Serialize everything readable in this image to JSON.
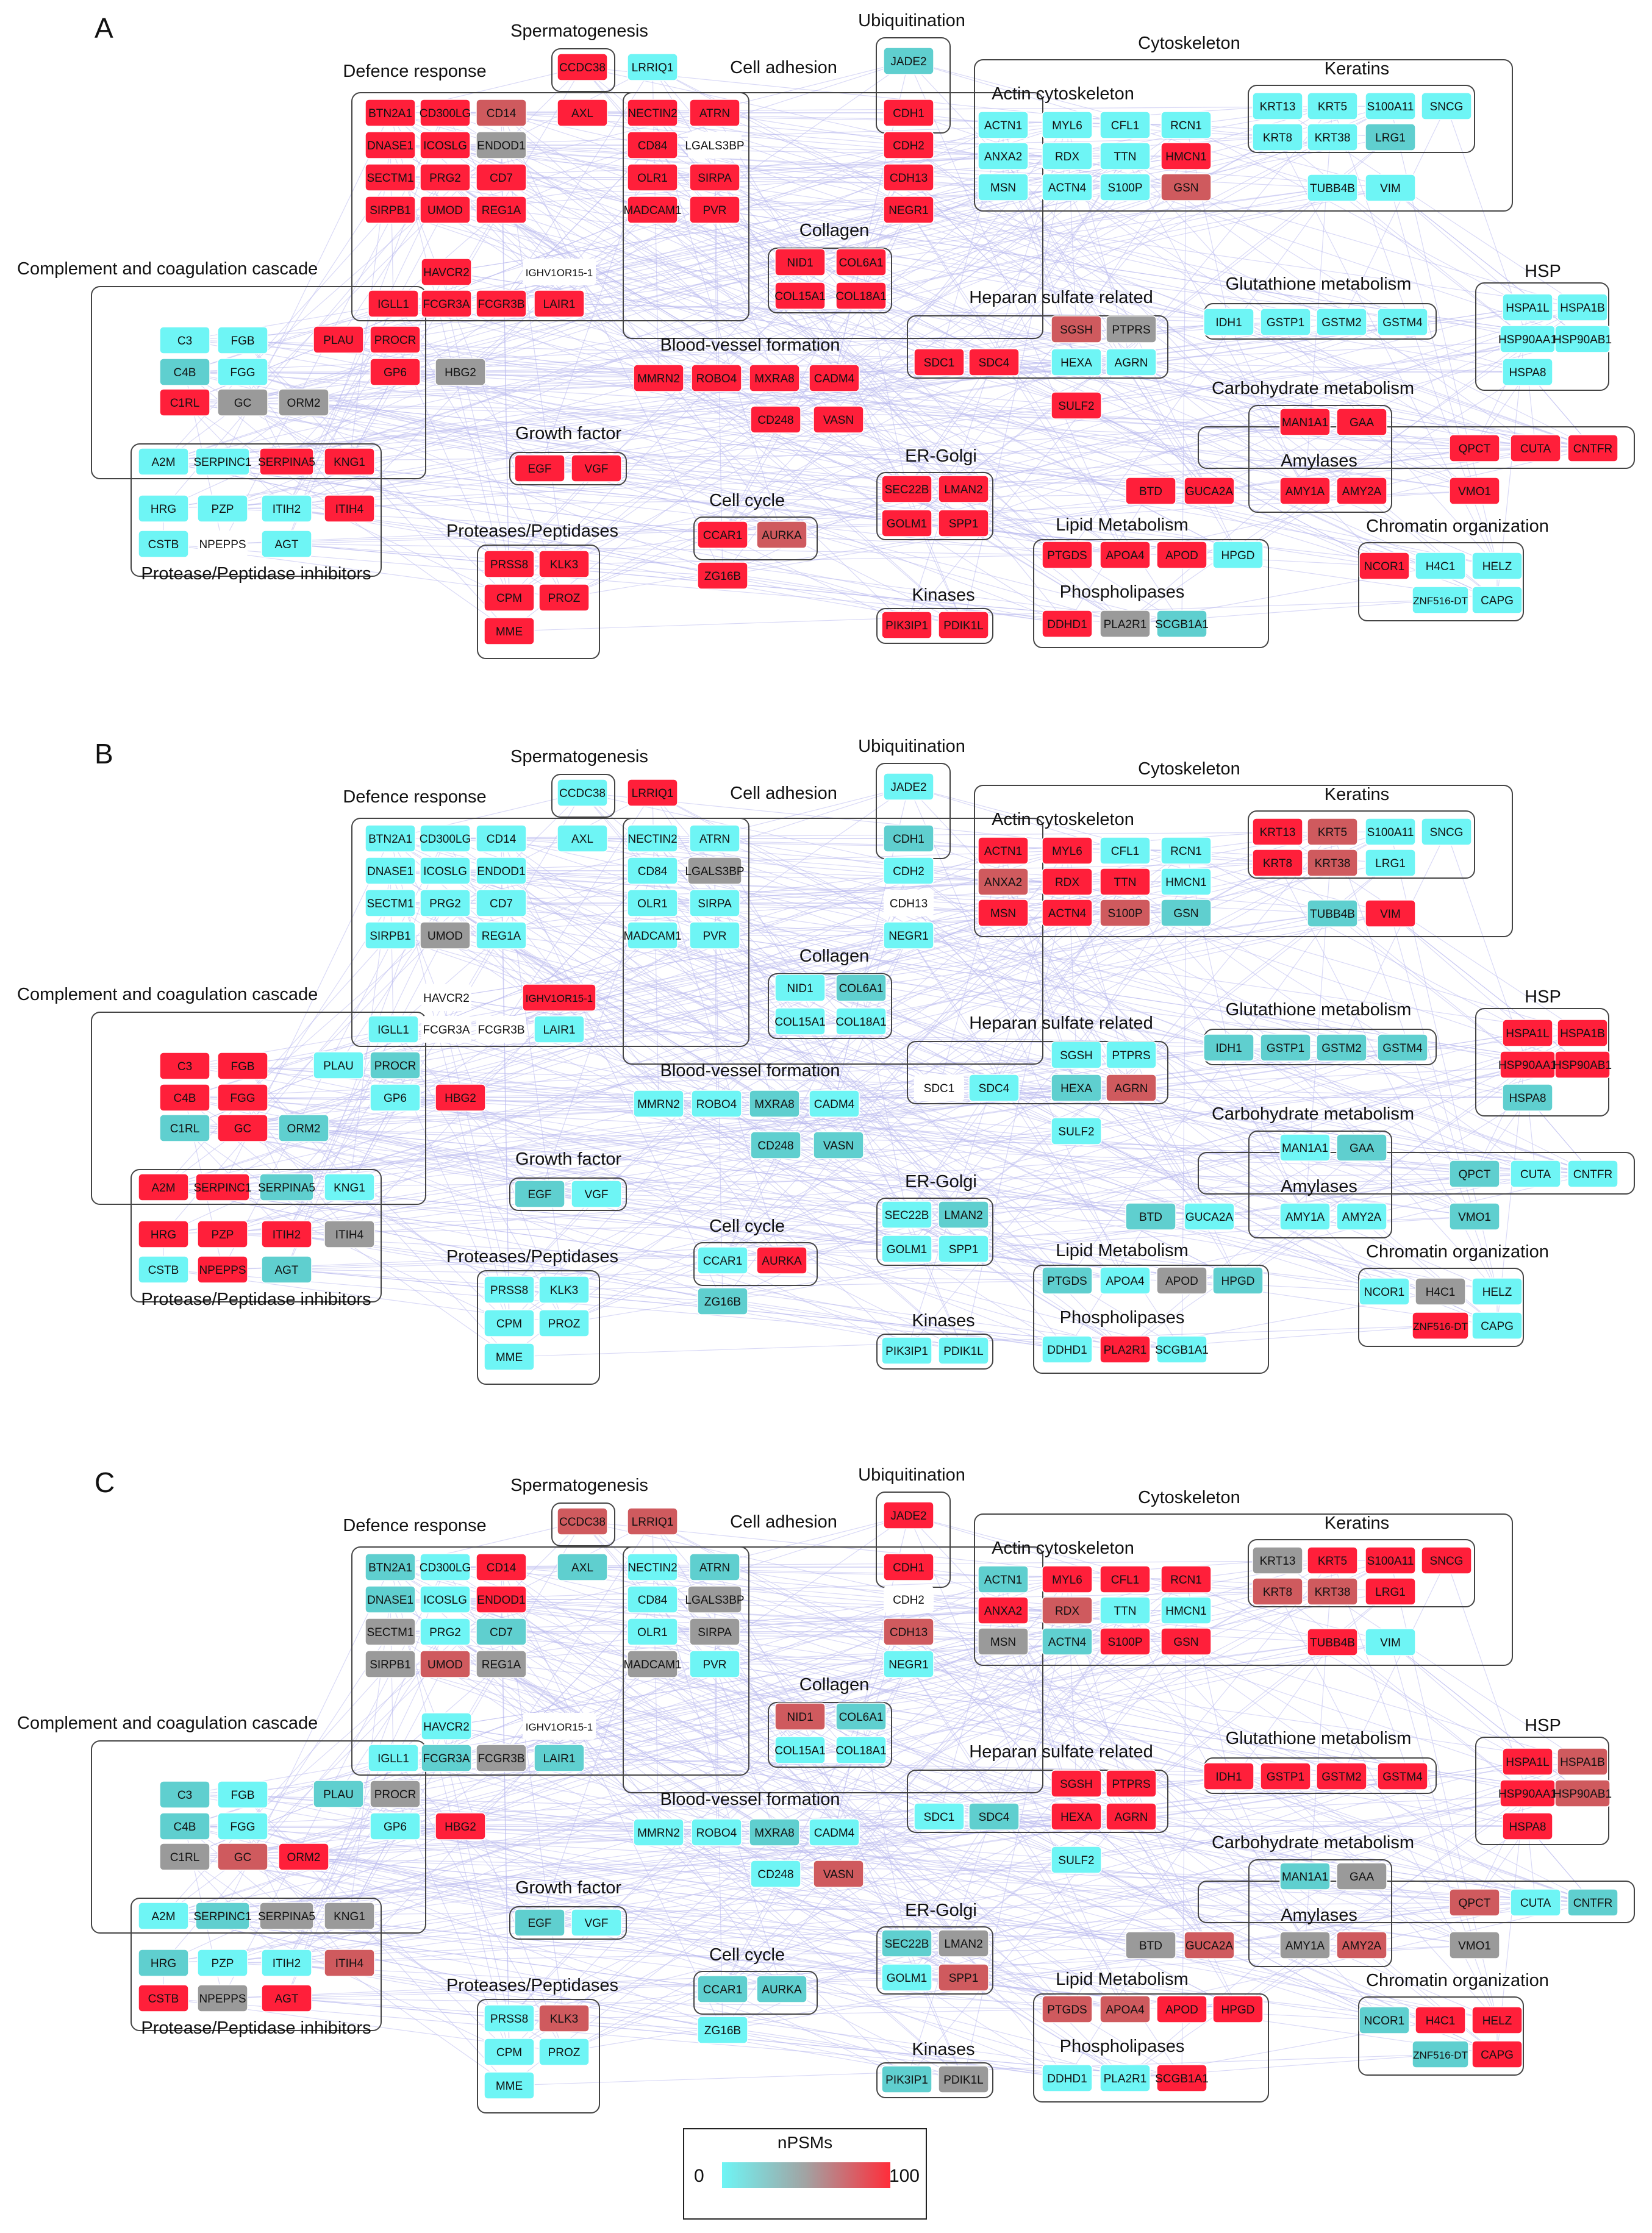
{
  "panels": [
    {
      "label": "A",
      "states": {
        "BTN2A1": "H",
        "CD300LG": "H",
        "CD14": "S",
        "DNASE1": "H",
        "ICOSLG": "H",
        "ENDOD1": "G",
        "SECTM1": "H",
        "PRG2": "H",
        "CD7": "H",
        "SIRPB1": "H",
        "UMOD": "H",
        "REG1A": "H",
        "HAVCR2": "H",
        "IGHV1OR15-1": "W",
        "IGLL1": "H",
        "FCGR3A": "H",
        "FCGR3B": "H",
        "LAIR1": "H",
        "CCDC38": "H",
        "LRRIQ1": "C",
        "AXL": "H",
        "JADE2": "T",
        "NECTIN2": "H",
        "ATRN": "H",
        "CD84": "H",
        "LGALS3BP": "W",
        "OLR1": "H",
        "SIRPA": "H",
        "MADCAM1": "H",
        "PVR": "H",
        "CDH1": "H",
        "CDH2": "H",
        "CDH13": "H",
        "NEGR1": "H",
        "NID1": "H",
        "COL6A1": "H",
        "COL15A1": "H",
        "COL18A1": "H",
        "MMRN2": "H",
        "ROBO4": "H",
        "MXRA8": "H",
        "CADM4": "H",
        "CD248": "H",
        "VASN": "H",
        "SGSH": "S",
        "PTPRS": "G",
        "HEXA": "C",
        "AGRN": "C",
        "SDC1": "H",
        "SDC4": "H",
        "SULF2": "H",
        "ACTN1": "C",
        "MYL6": "C",
        "CFL1": "C",
        "RCN1": "C",
        "ANXA2": "C",
        "RDX": "C",
        "TTN": "C",
        "HMCN1": "H",
        "MSN": "C",
        "ACTN4": "C",
        "S100P": "C",
        "GSN": "S",
        "KRT13": "C",
        "KRT5": "C",
        "S100A11": "C",
        "SNCG": "C",
        "KRT8": "C",
        "KRT38": "C",
        "LRG1": "T",
        "TUBB4B": "C",
        "VIM": "C",
        "IDH1": "C",
        "GSTP1": "C",
        "GSTM2": "C",
        "GSTM4": "C",
        "HSPA1L": "C",
        "HSPA1B": "C",
        "HSP90AA1": "C",
        "HSP90AB1": "C",
        "HSPA8": "C",
        "MAN1A1": "H",
        "GAA": "H",
        "AMY1A": "H",
        "AMY2A": "H",
        "BTD": "H",
        "GUCA2A": "H",
        "QPCT": "H",
        "CUTA": "H",
        "CNTFR": "H",
        "VMO1": "H",
        "C3": "C",
        "FGB": "C",
        "C4B": "T",
        "FGG": "C",
        "C1RL": "H",
        "GC": "G",
        "ORM2": "G",
        "PLAU": "H",
        "PROCR": "H",
        "GP6": "H",
        "HBG2": "G",
        "A2M": "C",
        "SERPINC1": "C",
        "SERPINA5": "H",
        "KNG1": "H",
        "HRG": "C",
        "PZP": "C",
        "ITIH2": "C",
        "ITIH4": "H",
        "CSTB": "C",
        "NPEPPS": "W",
        "AGT": "C",
        "EGF": "H",
        "VGF": "H",
        "PRSS8": "H",
        "KLK3": "H",
        "CPM": "H",
        "PROZ": "H",
        "MME": "H",
        "SEC22B": "H",
        "LMAN2": "H",
        "GOLM1": "H",
        "SPP1": "H",
        "CCAR1": "H",
        "AURKA": "S",
        "ZG16B": "H",
        "PIK3IP1": "H",
        "PDIK1L": "H",
        "PTGDS": "H",
        "APOA4": "H",
        "APOD": "H",
        "HPGD": "C",
        "DDHD1": "H",
        "PLA2R1": "G",
        "SCGB1A1": "T",
        "NCOR1": "H",
        "H4C1": "C",
        "HELZ": "C",
        "ZNF516-DT": "C",
        "CAPG": "C"
      }
    },
    {
      "label": "B",
      "states": {
        "BTN2A1": "C",
        "CD300LG": "C",
        "CD14": "C",
        "DNASE1": "C",
        "ICOSLG": "C",
        "ENDOD1": "C",
        "SECTM1": "C",
        "PRG2": "C",
        "CD7": "C",
        "SIRPB1": "C",
        "UMOD": "G",
        "REG1A": "C",
        "HAVCR2": "W",
        "IGHV1OR15-1": "H",
        "IGLL1": "C",
        "FCGR3A": "W",
        "FCGR3B": "W",
        "LAIR1": "C",
        "CCDC38": "C",
        "LRRIQ1": "H",
        "AXL": "C",
        "JADE2": "C",
        "NECTIN2": "C",
        "ATRN": "C",
        "CD84": "C",
        "LGALS3BP": "G",
        "OLR1": "C",
        "SIRPA": "C",
        "MADCAM1": "C",
        "PVR": "C",
        "CDH1": "T",
        "CDH2": "C",
        "CDH13": "W",
        "NEGR1": "C",
        "NID1": "C",
        "COL6A1": "T",
        "COL15A1": "C",
        "COL18A1": "C",
        "MMRN2": "C",
        "ROBO4": "C",
        "MXRA8": "T",
        "CADM4": "C",
        "CD248": "T",
        "VASN": "T",
        "SGSH": "C",
        "PTPRS": "C",
        "HEXA": "T",
        "AGRN": "S",
        "SDC1": "W",
        "SDC4": "C",
        "SULF2": "C",
        "ACTN1": "H",
        "MYL6": "H",
        "CFL1": "C",
        "RCN1": "C",
        "ANXA2": "S",
        "RDX": "H",
        "TTN": "H",
        "HMCN1": "C",
        "MSN": "H",
        "ACTN4": "H",
        "S100P": "S",
        "GSN": "T",
        "KRT13": "H",
        "KRT5": "S",
        "S100A11": "C",
        "SNCG": "C",
        "KRT8": "H",
        "KRT38": "S",
        "LRG1": "C",
        "TUBB4B": "T",
        "VIM": "H",
        "IDH1": "T",
        "GSTP1": "T",
        "GSTM2": "T",
        "GSTM4": "T",
        "HSPA1L": "H",
        "HSPA1B": "H",
        "HSP90AA1": "H",
        "HSP90AB1": "H",
        "HSPA8": "T",
        "MAN1A1": "C",
        "GAA": "T",
        "AMY1A": "C",
        "AMY2A": "C",
        "BTD": "T",
        "GUCA2A": "C",
        "QPCT": "T",
        "CUTA": "C",
        "CNTFR": "C",
        "VMO1": "T",
        "C3": "H",
        "FGB": "H",
        "C4B": "H",
        "FGG": "H",
        "C1RL": "T",
        "GC": "H",
        "ORM2": "T",
        "PLAU": "C",
        "PROCR": "T",
        "GP6": "C",
        "HBG2": "H",
        "A2M": "H",
        "SERPINC1": "H",
        "SERPINA5": "T",
        "KNG1": "C",
        "HRG": "H",
        "PZP": "H",
        "ITIH2": "H",
        "ITIH4": "G",
        "CSTB": "C",
        "NPEPPS": "H",
        "AGT": "T",
        "EGF": "T",
        "VGF": "C",
        "PRSS8": "C",
        "KLK3": "C",
        "CPM": "C",
        "PROZ": "C",
        "MME": "C",
        "SEC22B": "C",
        "LMAN2": "T",
        "GOLM1": "C",
        "SPP1": "C",
        "CCAR1": "C",
        "AURKA": "H",
        "ZG16B": "T",
        "PIK3IP1": "C",
        "PDIK1L": "C",
        "PTGDS": "T",
        "APOA4": "C",
        "APOD": "G",
        "HPGD": "T",
        "DDHD1": "C",
        "PLA2R1": "H",
        "SCGB1A1": "C",
        "NCOR1": "C",
        "H4C1": "G",
        "HELZ": "C",
        "ZNF516-DT": "H",
        "CAPG": "C"
      }
    },
    {
      "label": "C",
      "states": {
        "BTN2A1": "T",
        "CD300LG": "C",
        "CD14": "H",
        "DNASE1": "T",
        "ICOSLG": "C",
        "ENDOD1": "H",
        "SECTM1": "G",
        "PRG2": "C",
        "CD7": "T",
        "SIRPB1": "G",
        "UMOD": "S",
        "REG1A": "G",
        "HAVCR2": "C",
        "IGHV1OR15-1": "W",
        "IGLL1": "C",
        "FCGR3A": "T",
        "FCGR3B": "G",
        "LAIR1": "T",
        "CCDC38": "S",
        "LRRIQ1": "S",
        "AXL": "T",
        "JADE2": "H",
        "NECTIN2": "C",
        "ATRN": "T",
        "CD84": "C",
        "LGALS3BP": "G",
        "OLR1": "C",
        "SIRPA": "G",
        "MADCAM1": "G",
        "PVR": "C",
        "CDH1": "H",
        "CDH2": "W",
        "CDH13": "S",
        "NEGR1": "C",
        "NID1": "S",
        "COL6A1": "T",
        "COL15A1": "C",
        "COL18A1": "C",
        "MMRN2": "C",
        "ROBO4": "C",
        "MXRA8": "T",
        "CADM4": "C",
        "CD248": "C",
        "VASN": "S",
        "SGSH": "H",
        "PTPRS": "H",
        "HEXA": "H",
        "AGRN": "H",
        "SDC1": "C",
        "SDC4": "T",
        "SULF2": "C",
        "ACTN1": "T",
        "MYL6": "H",
        "CFL1": "H",
        "RCN1": "H",
        "ANXA2": "H",
        "RDX": "S",
        "TTN": "C",
        "HMCN1": "C",
        "MSN": "G",
        "ACTN4": "T",
        "S100P": "H",
        "GSN": "H",
        "KRT13": "G",
        "KRT5": "H",
        "S100A11": "H",
        "SNCG": "H",
        "KRT8": "S",
        "KRT38": "S",
        "LRG1": "H",
        "TUBB4B": "H",
        "VIM": "C",
        "IDH1": "H",
        "GSTP1": "H",
        "GSTM2": "H",
        "GSTM4": "H",
        "HSPA1L": "H",
        "HSPA1B": "S",
        "HSP90AA1": "H",
        "HSP90AB1": "S",
        "HSPA8": "H",
        "MAN1A1": "T",
        "GAA": "G",
        "AMY1A": "G",
        "AMY2A": "S",
        "BTD": "G",
        "GUCA2A": "S",
        "QPCT": "S",
        "CUTA": "C",
        "CNTFR": "T",
        "VMO1": "G",
        "C3": "T",
        "FGB": "C",
        "C4B": "T",
        "FGG": "C",
        "C1RL": "G",
        "GC": "S",
        "ORM2": "H",
        "PLAU": "T",
        "PROCR": "G",
        "GP6": "C",
        "HBG2": "H",
        "A2M": "C",
        "SERPINC1": "T",
        "SERPINA5": "G",
        "KNG1": "G",
        "HRG": "T",
        "PZP": "C",
        "ITIH2": "C",
        "ITIH4": "S",
        "CSTB": "H",
        "NPEPPS": "G",
        "AGT": "H",
        "EGF": "T",
        "VGF": "C",
        "PRSS8": "C",
        "KLK3": "S",
        "CPM": "C",
        "PROZ": "C",
        "MME": "C",
        "SEC22B": "T",
        "LMAN2": "G",
        "GOLM1": "C",
        "SPP1": "S",
        "CCAR1": "T",
        "AURKA": "T",
        "ZG16B": "C",
        "PIK3IP1": "T",
        "PDIK1L": "G",
        "PTGDS": "S",
        "APOA4": "S",
        "APOD": "H",
        "HPGD": "H",
        "DDHD1": "C",
        "PLA2R1": "C",
        "SCGB1A1": "H",
        "NCOR1": "T",
        "H4C1": "H",
        "HELZ": "H",
        "ZNF516-DT": "T",
        "CAPG": "H"
      }
    }
  ],
  "categories": [
    "Spermatogenesis",
    "Ubiquitination",
    "Defence response",
    "Cell adhesion",
    "Cytoskeleton",
    "Keratins",
    "Actin cytoskeleton",
    "Collagen",
    "Complement and coagulation cascade",
    "Heparan sulfate related",
    "Glutathione metabolism",
    "HSP",
    "Blood-vessel formation",
    "Carbohydrate metabolism",
    "Growth factor",
    "Amylases",
    "ER-Golgi",
    "Cell cycle",
    "Proteases/Peptidases",
    "Lipid Metabolism",
    "Chromatin organization",
    "Protease/Peptidase inhibitors",
    "Kinases",
    "Phospholipases"
  ],
  "state_colors": {
    "C": "#6ef5f5",
    "T": "#5fcfcf",
    "G": "#9a9a9a",
    "S": "#cf5a5e",
    "H": "#ff1f3a",
    "W": "#ffffff"
  },
  "edge_color": "#b9b9ef",
  "legend": {
    "title": "nPSMs",
    "min_label": "0",
    "max_label": "100",
    "colors": [
      "#6ef5f5",
      "#a2a2a2",
      "#ff2d3a"
    ]
  }
}
